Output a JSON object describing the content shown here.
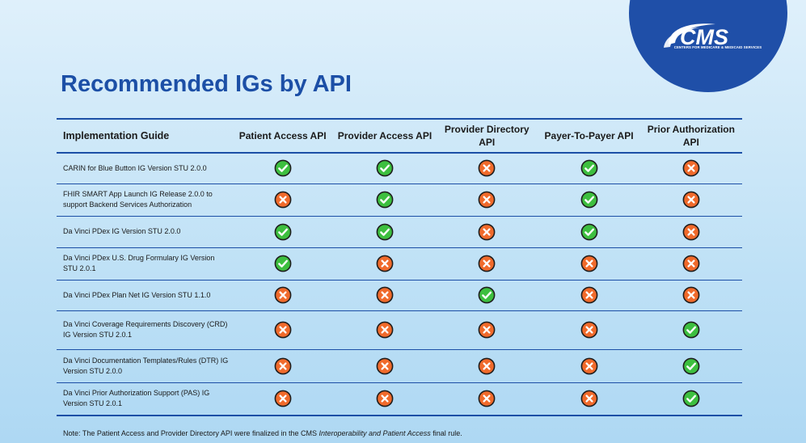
{
  "logo": {
    "text": "CMS",
    "subtitle": "CENTERS FOR MEDICARE & MEDICAID SERVICES",
    "color": "#1f4fa8"
  },
  "title": "Recommended IGs by API",
  "table": {
    "headers": [
      "Implementation Guide",
      "Patient Access API",
      "Provider Access API",
      "Provider Directory API",
      "Payer-To-Payer API",
      "Prior Authorization API"
    ],
    "rows": [
      {
        "guide": "CARIN for Blue Button IG Version STU 2.0.0",
        "values": [
          "check",
          "check",
          "cross",
          "check",
          "cross"
        ]
      },
      {
        "guide": "FHIR SMART App Launch IG Release 2.0.0 to support Backend Services Authorization",
        "values": [
          "cross",
          "check",
          "cross",
          "check",
          "cross"
        ]
      },
      {
        "guide": "Da Vinci PDex IG Version STU 2.0.0",
        "values": [
          "check",
          "check",
          "cross",
          "check",
          "cross"
        ]
      },
      {
        "guide": "Da Vinci PDex U.S. Drug Formulary IG Version STU 2.0.1",
        "values": [
          "check",
          "cross",
          "cross",
          "cross",
          "cross"
        ]
      },
      {
        "guide": "Da Vinci PDex Plan Net IG Version STU 1.1.0",
        "values": [
          "cross",
          "cross",
          "check",
          "cross",
          "cross"
        ]
      },
      {
        "guide": "Da Vinci Coverage Requirements Discovery (CRD) IG Version STU 2.0.1",
        "values": [
          "cross",
          "cross",
          "cross",
          "cross",
          "check"
        ]
      },
      {
        "guide": "Da Vinci Documentation Templates/Rules (DTR) IG Version STU 2.0.0",
        "values": [
          "cross",
          "cross",
          "cross",
          "cross",
          "check"
        ]
      },
      {
        "guide": "Da Vinci Prior Authorization Support (PAS) IG Version STU 2.0.1",
        "values": [
          "cross",
          "cross",
          "cross",
          "cross",
          "check"
        ]
      }
    ]
  },
  "icons": {
    "check": "check-circle-icon",
    "cross": "x-circle-icon",
    "check_color": "#3dbf3f",
    "cross_color": "#f06a2b"
  },
  "note": {
    "prefix": "Note: The Patient Access and Provider Directory API were finalized in the CMS ",
    "italic": "Interoperability and Patient Access",
    "suffix": " final rule."
  }
}
